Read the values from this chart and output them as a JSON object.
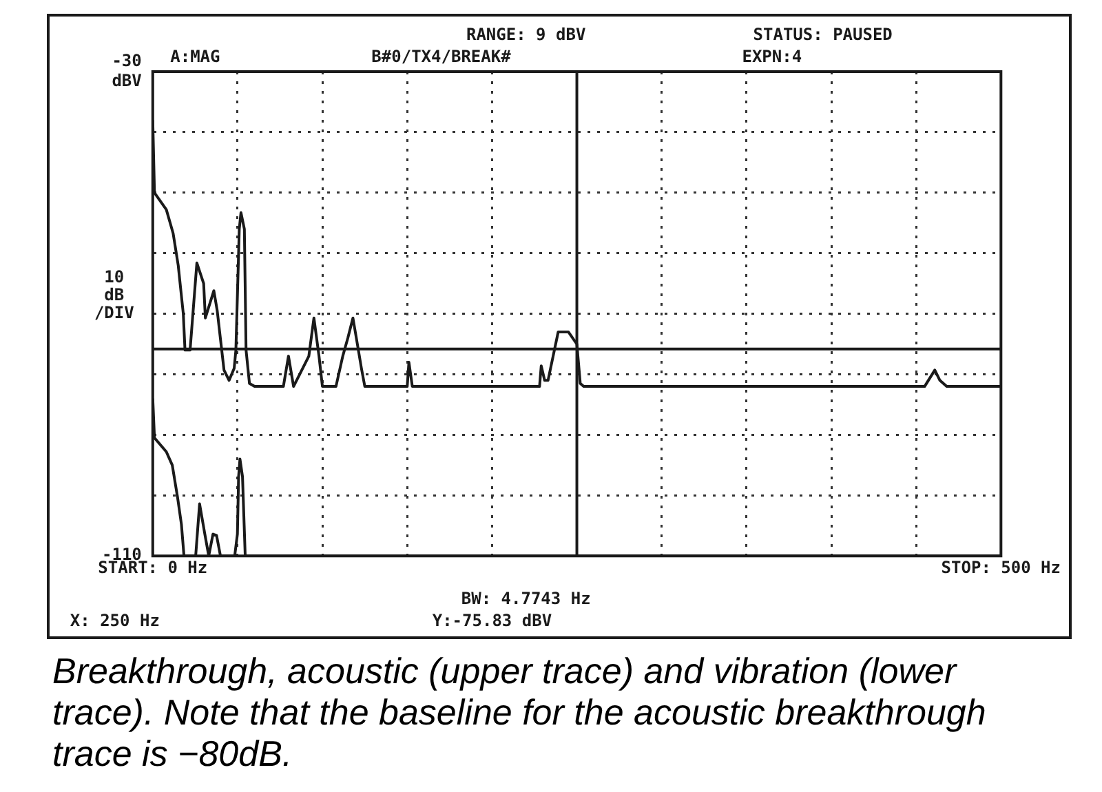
{
  "chart_data": {
    "type": "line",
    "ylabel": "10 dB /DIV",
    "annotations": [
      "A:MAG",
      "B#0/TX4/BREAK#",
      "RANGE: 9 dBV",
      "STATUS: PAUSED",
      "EXPN:4",
      "BW: 4.7743 Hz",
      "X: 250 Hz",
      "Y:-75.83 dBV",
      "Breakthrough, acoustic (upper trace) and vibration (lower trace). Note that the baseline for the acoustic breakthrough trace is −80dB."
    ],
    "xlim": [
      0,
      500
    ],
    "xticks": [
      {
        "value": 0,
        "label": "START: 0 Hz"
      },
      {
        "value": 50,
        "label": null
      },
      {
        "value": 100,
        "label": null
      },
      {
        "value": 150,
        "label": null
      },
      {
        "value": 200,
        "label": null
      },
      {
        "value": 250,
        "label": null
      },
      {
        "value": 300,
        "label": null
      },
      {
        "value": 350,
        "label": null
      },
      {
        "value": 400,
        "label": null
      },
      {
        "value": 450,
        "label": null
      },
      {
        "value": 500,
        "label": "STOP: 500 Hz"
      }
    ],
    "ylim": [
      -110,
      -30
    ],
    "yticks": [
      -110,
      {
        "value": -100,
        "label": null
      },
      {
        "value": -90,
        "label": null
      },
      {
        "value": -80,
        "label": null
      },
      {
        "value": -70,
        "label": null
      },
      {
        "value": -60,
        "label": null
      },
      {
        "value": -50,
        "label": null
      },
      {
        "value": -40,
        "label": null
      },
      {
        "value": -30,
        "label": "-30 dBV"
      }
    ],
    "grid": true,
    "ref_lines": [
      {
        "axis": "x",
        "value": 250
      },
      {
        "axis": "y",
        "value": -75.83
      }
    ],
    "series": [
      {
        "color": "#1a1a1a",
        "x": [
          0,
          1,
          8,
          12,
          15,
          18,
          19,
          22,
          26,
          30,
          31,
          36,
          38,
          42,
          45,
          48,
          49,
          51,
          52,
          54,
          55,
          57,
          60,
          77,
          80,
          83,
          92,
          95,
          98,
          100,
          108,
          112,
          115,
          118,
          120,
          123,
          125,
          150,
          151,
          153,
          228,
          229,
          231,
          233,
          239,
          245,
          250,
          252,
          254,
          455,
          461,
          464,
          468,
          500
        ],
        "values": [
          -38,
          -50,
          -52.8,
          -56.7,
          -62,
          -70,
          -76,
          -76,
          -61.6,
          -65,
          -70.7,
          -66.2,
          -69.5,
          -79.3,
          -81,
          -79,
          -76,
          -56,
          -53.3,
          -56,
          -76,
          -81.5,
          -82,
          -82,
          -77,
          -82,
          -77,
          -70.7,
          -77,
          -82,
          -82,
          -77,
          -74,
          -70.7,
          -74,
          -79,
          -82,
          -82,
          -78,
          -82,
          -82,
          -78.6,
          -81,
          -81,
          -73,
          -73,
          -75,
          -81.5,
          -82,
          -82,
          -79.3,
          -81,
          -82,
          -82
        ]
      },
      {
        "color": "#1a1a1a",
        "x": [
          0,
          1,
          8,
          11.5,
          14.6,
          16.9,
          18.4,
          25.3,
          27.6,
          30.7,
          33,
          35.5,
          37.6,
          39.9,
          48.3,
          49.9,
          50.6,
          51.4,
          52.9,
          54.5,
          500
        ],
        "values": [
          -84,
          -90.5,
          -92.8,
          -95,
          -100.3,
          -104.8,
          -110,
          -110,
          -101.4,
          -106.4,
          -110,
          -106.4,
          -106.6,
          -110,
          -110,
          -106.4,
          -96.9,
          -94,
          -96.9,
          -110,
          -110
        ]
      }
    ]
  }
}
